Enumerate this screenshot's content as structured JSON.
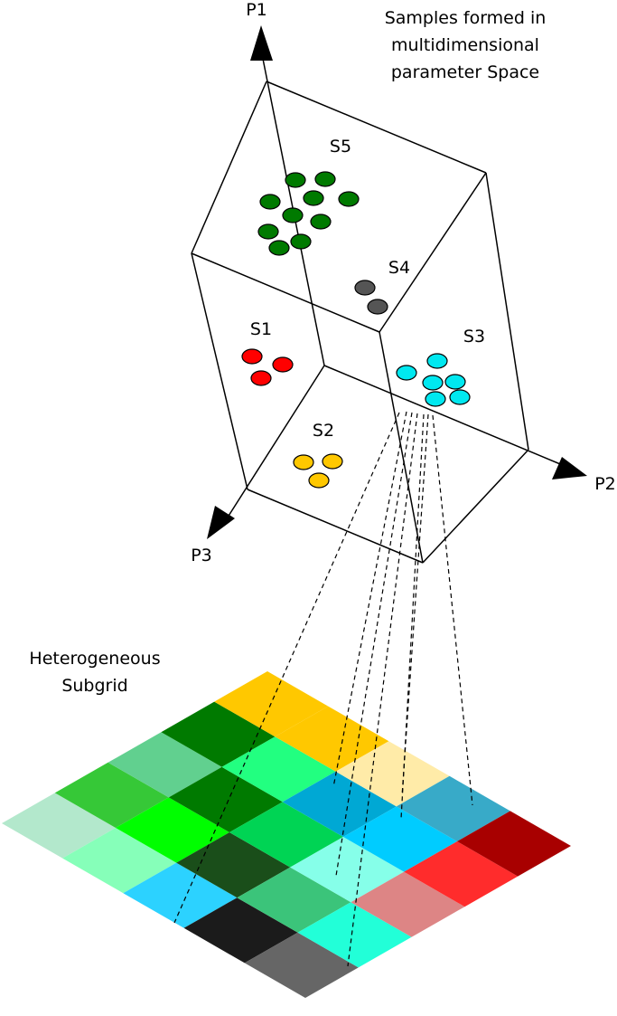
{
  "title_lines": [
    "Samples formed in",
    "multidimensional",
    "parameter Space"
  ],
  "axes": {
    "p1": "P1",
    "p2": "P2",
    "p3": "P3"
  },
  "clusters": [
    {
      "id": "s5",
      "label": "S5",
      "color": "#007a00",
      "count": 10
    },
    {
      "id": "s4",
      "label": "S4",
      "color": "#555555",
      "count": 2
    },
    {
      "id": "s1",
      "label": "S1",
      "color": "#ff0000",
      "count": 3
    },
    {
      "id": "s3",
      "label": "S3",
      "color": "#00e8f0",
      "count": 7
    },
    {
      "id": "s2",
      "label": "S2",
      "color": "#ffc800",
      "count": 3
    }
  ],
  "subgrid_label_lines": [
    "Heterogeneous",
    "Subgrid"
  ],
  "subgrid_colors": [
    [
      "#b3e8cc",
      "#86ffb9",
      "#2cd2ff",
      "#1b1b1b",
      "#666666"
    ],
    [
      "#36c837",
      "#00fe00",
      "#1a4e1a",
      "#3bc47a",
      "#22ffd8"
    ],
    [
      "#61d08f",
      "#007a00",
      "#00d454",
      "#86ffe9",
      "#dd8585"
    ],
    [
      "#007a00",
      "#22ff80",
      "#00a8d4",
      "#00ccff",
      "#ff2c2c"
    ],
    [
      "#ffc800",
      "#ffc800",
      "#ffeba8",
      "#38aac8",
      "#a80000"
    ]
  ]
}
